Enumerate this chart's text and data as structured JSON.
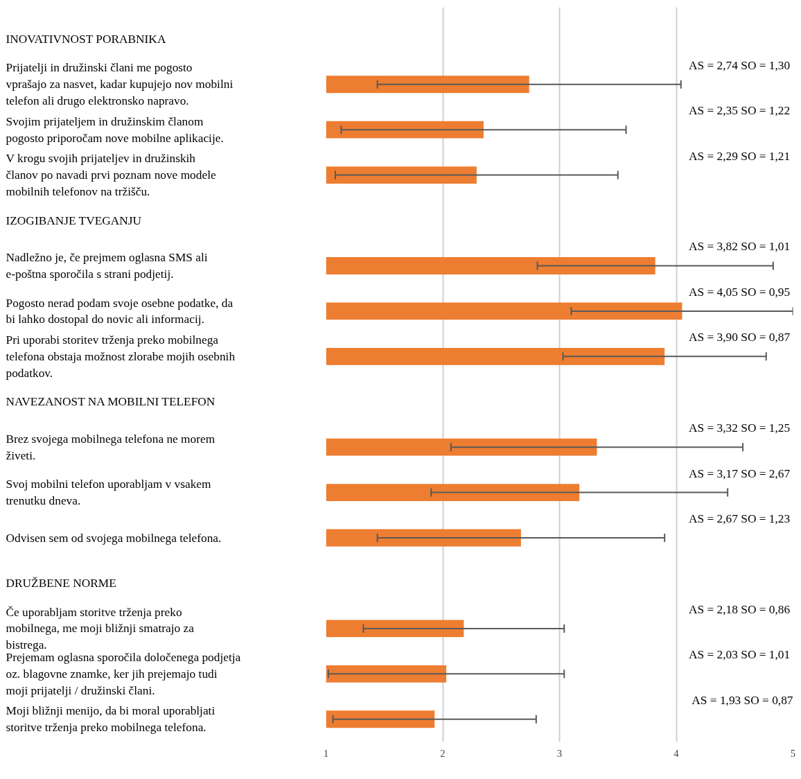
{
  "chart_data": {
    "type": "bar",
    "orientation": "horizontal",
    "categories": [
      "INOVATIVNOST PORABNIKA",
      "Prijatelji in družinski člani me pogosto vprašajo za nasvet, kadar kupujejo nov mobilni telefon ali drugo elektronsko napravo.",
      "Svojim prijateljem in družinskim članom pogosto priporočam nove mobilne aplikacije.",
      "V krogu svojih prijateljev in družinskih članov po navadi prvi poznam nove modele mobilnih telefonov na tržišču.",
      "IZOGIBANJE TVEGANJU",
      "Nadležno je, če prejmem oglasna SMS ali e-poštna sporočila s strani podjetij.",
      "Pogosto nerad podam svoje osebne podatke, da bi lahko dostopal do novic ali informacij.",
      "Pri uporabi storitev trženja preko mobilnega telefona obstaja možnost zlorabe mojih osebnih podatkov.",
      "NAVEZANOST NA MOBILNI TELEFON",
      "Brez svojega mobilnega telefona ne morem živeti.",
      "Svoj mobilni telefon uporabljam v vsakem trenutku dneva.",
      "Odvisen sem od svojega mobilnega telefona.",
      "DRUŽBENE NORME",
      "Če uporabljam storitve trženja preko mobilnega, me moji bližnji smatrajo za bistrega.",
      "Prejemam oglasna sporočila določenega podjetja oz. blagovne znamke, ker jih prejemajo tudi moji prijatelji / družinski člani.",
      "Moji bližnji menijo, da bi moral uporabljati storitve trženja preko mobilnega telefona."
    ],
    "values": [
      null,
      2.74,
      2.35,
      2.29,
      null,
      3.82,
      4.05,
      3.9,
      null,
      3.32,
      3.17,
      2.67,
      null,
      2.18,
      2.03,
      1.93
    ],
    "errors": [
      null,
      1.3,
      1.22,
      1.21,
      null,
      1.01,
      0.95,
      0.87,
      null,
      1.25,
      1.27,
      1.23,
      null,
      0.86,
      1.01,
      0.87
    ],
    "value_labels": [
      null,
      "AS = 2,74  SO = 1,30",
      "AS = 2,35  SO = 1,22",
      "AS = 2,29  SO = 1,21",
      null,
      "AS = 3,82  SO = 1,01",
      "AS = 4,05  SO = 0,95",
      "AS = 3,90  SO = 0,87",
      null,
      "AS = 3,32  SO = 1,25",
      "AS = 3,17  SO = 2,67",
      "AS = 2,67  SO = 1,23",
      null,
      "AS = 2,18  SO = 0,86",
      "AS = 2,03  SO = 1,01",
      "AS = 1,93 SO = 0,87"
    ],
    "color": "#ed7d31",
    "xlim": [
      1,
      5
    ],
    "xticks": [
      1,
      2,
      3,
      4,
      5
    ],
    "grid": "x"
  }
}
